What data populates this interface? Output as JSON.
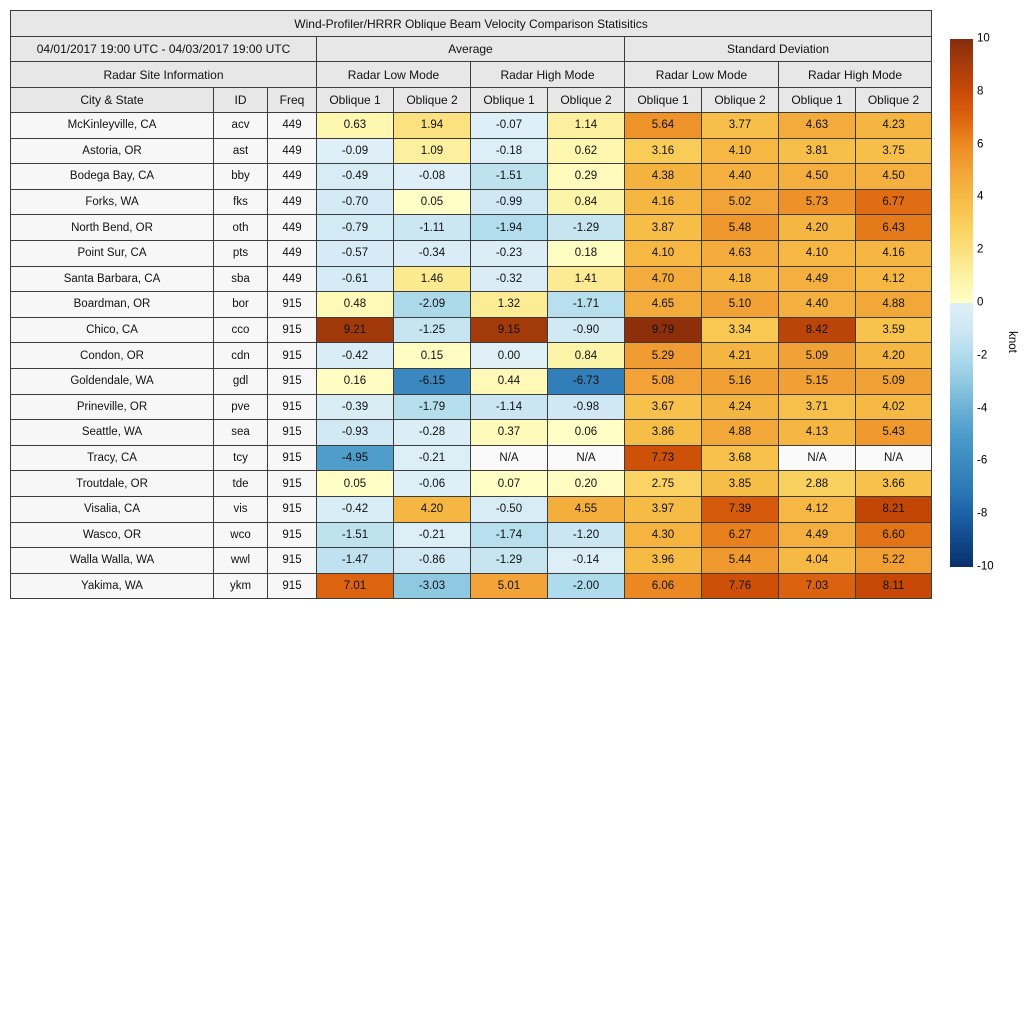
{
  "chart_data": {
    "type": "heatmap",
    "title": "Wind-Profiler/HRRR Oblique Beam Velocity Comparison Statisitics",
    "date_range": "04/01/2017 19:00 UTC - 04/03/2017 19:00 UTC",
    "site_info_header": "Radar Site Information",
    "group_headers": [
      "Average",
      "Standard Deviation"
    ],
    "mode_headers": [
      "Radar Low Mode",
      "Radar High Mode",
      "Radar Low Mode",
      "Radar High Mode"
    ],
    "label_columns": [
      "City & State",
      "ID",
      "Freq"
    ],
    "oblique_headers": [
      "Oblique 1",
      "Oblique 2",
      "Oblique 1",
      "Oblique 2",
      "Oblique 1",
      "Oblique 2",
      "Oblique 1",
      "Oblique 2"
    ],
    "rows": [
      {
        "city": "McKinleyville, CA",
        "id": "acv",
        "freq": "449",
        "values": [
          "0.63",
          "1.94",
          "-0.07",
          "1.14",
          "5.64",
          "3.77",
          "4.63",
          "4.23"
        ]
      },
      {
        "city": "Astoria, OR",
        "id": "ast",
        "freq": "449",
        "values": [
          "-0.09",
          "1.09",
          "-0.18",
          "0.62",
          "3.16",
          "4.10",
          "3.81",
          "3.75"
        ]
      },
      {
        "city": "Bodega Bay, CA",
        "id": "bby",
        "freq": "449",
        "values": [
          "-0.49",
          "-0.08",
          "-1.51",
          "0.29",
          "4.38",
          "4.40",
          "4.50",
          "4.50"
        ]
      },
      {
        "city": "Forks, WA",
        "id": "fks",
        "freq": "449",
        "values": [
          "-0.70",
          "0.05",
          "-0.99",
          "0.84",
          "4.16",
          "5.02",
          "5.73",
          "6.77"
        ]
      },
      {
        "city": "North Bend, OR",
        "id": "oth",
        "freq": "449",
        "values": [
          "-0.79",
          "-1.11",
          "-1.94",
          "-1.29",
          "3.87",
          "5.48",
          "4.20",
          "6.43"
        ]
      },
      {
        "city": "Point Sur, CA",
        "id": "pts",
        "freq": "449",
        "values": [
          "-0.57",
          "-0.34",
          "-0.23",
          "0.18",
          "4.10",
          "4.63",
          "4.10",
          "4.16"
        ]
      },
      {
        "city": "Santa Barbara, CA",
        "id": "sba",
        "freq": "449",
        "values": [
          "-0.61",
          "1.46",
          "-0.32",
          "1.41",
          "4.70",
          "4.18",
          "4.49",
          "4.12"
        ]
      },
      {
        "city": "Boardman, OR",
        "id": "bor",
        "freq": "915",
        "values": [
          "0.48",
          "-2.09",
          "1.32",
          "-1.71",
          "4.65",
          "5.10",
          "4.40",
          "4.88"
        ]
      },
      {
        "city": "Chico, CA",
        "id": "cco",
        "freq": "915",
        "values": [
          "9.21",
          "-1.25",
          "9.15",
          "-0.90",
          "9.79",
          "3.34",
          "8.42",
          "3.59"
        ]
      },
      {
        "city": "Condon, OR",
        "id": "cdn",
        "freq": "915",
        "values": [
          "-0.42",
          "0.15",
          "0.00",
          "0.84",
          "5.29",
          "4.21",
          "5.09",
          "4.20"
        ]
      },
      {
        "city": "Goldendale, WA",
        "id": "gdl",
        "freq": "915",
        "values": [
          "0.16",
          "-6.15",
          "0.44",
          "-6.73",
          "5.08",
          "5.16",
          "5.15",
          "5.09"
        ]
      },
      {
        "city": "Prineville, OR",
        "id": "pve",
        "freq": "915",
        "values": [
          "-0.39",
          "-1.79",
          "-1.14",
          "-0.98",
          "3.67",
          "4.24",
          "3.71",
          "4.02"
        ]
      },
      {
        "city": "Seattle, WA",
        "id": "sea",
        "freq": "915",
        "values": [
          "-0.93",
          "-0.28",
          "0.37",
          "0.06",
          "3.86",
          "4.88",
          "4.13",
          "5.43"
        ]
      },
      {
        "city": "Tracy, CA",
        "id": "tcy",
        "freq": "915",
        "values": [
          "-4.95",
          "-0.21",
          "N/A",
          "N/A",
          "7.73",
          "3.68",
          "N/A",
          "N/A"
        ]
      },
      {
        "city": "Troutdale, OR",
        "id": "tde",
        "freq": "915",
        "values": [
          "0.05",
          "-0.06",
          "0.07",
          "0.20",
          "2.75",
          "3.85",
          "2.88",
          "3.66"
        ]
      },
      {
        "city": "Visalia, CA",
        "id": "vis",
        "freq": "915",
        "values": [
          "-0.42",
          "4.20",
          "-0.50",
          "4.55",
          "3.97",
          "7.39",
          "4.12",
          "8.21"
        ]
      },
      {
        "city": "Wasco, OR",
        "id": "wco",
        "freq": "915",
        "values": [
          "-1.51",
          "-0.21",
          "-1.74",
          "-1.20",
          "4.30",
          "6.27",
          "4.49",
          "6.60"
        ]
      },
      {
        "city": "Walla Walla, WA",
        "id": "wwl",
        "freq": "915",
        "values": [
          "-1.47",
          "-0.86",
          "-1.29",
          "-0.14",
          "3.96",
          "5.44",
          "4.04",
          "5.22"
        ]
      },
      {
        "city": "Yakima, WA",
        "id": "ykm",
        "freq": "915",
        "values": [
          "7.01",
          "-3.03",
          "5.01",
          "-2.00",
          "6.06",
          "7.76",
          "7.03",
          "8.11"
        ]
      }
    ],
    "colorbar": {
      "label": "knot",
      "min": -10,
      "max": 10,
      "ticks": [
        10,
        8,
        6,
        4,
        2,
        0,
        -2,
        -4,
        -6,
        -8,
        -10
      ]
    },
    "colormap": {
      "positive": [
        "#ffffc8",
        "#fcf2a2",
        "#fbe07e",
        "#f9cf5b",
        "#f6ba44",
        "#f2a438",
        "#ec8a22",
        "#dc6410",
        "#c94a06",
        "#a83c0a",
        "#862c0b"
      ],
      "negative": [
        "#dff0f7",
        "#cfe8f3",
        "#afdcec",
        "#90c9e1",
        "#6bb1d5",
        "#4c9cca",
        "#3c8ac0",
        "#2d7ab7",
        "#1d61a7",
        "#12488a",
        "#08306b"
      ],
      "na_bg": "#fafafa",
      "header_bg": "#e7e7e7",
      "label_bg": "#f7f7f7",
      "border": "#3c3c3c"
    }
  }
}
